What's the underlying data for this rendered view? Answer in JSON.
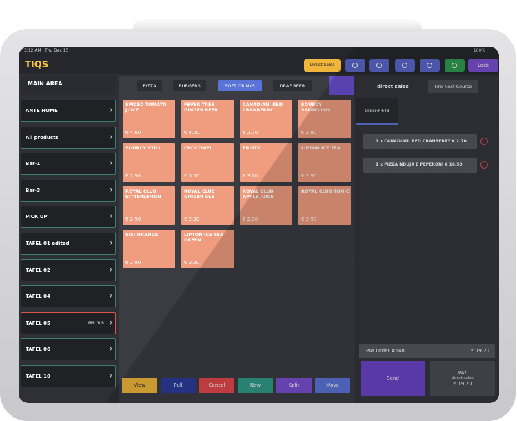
{
  "status": {
    "time": "3:12 AM",
    "date": "Thu Dec 15",
    "battery": "100%"
  },
  "header": {
    "logo": "TIQS",
    "direct_sales": "Direct Sales",
    "lock": "Lock"
  },
  "sidebar": {
    "title": "MAIN AREA",
    "items": [
      {
        "name": "ANTE HOME"
      },
      {
        "name": "All products"
      },
      {
        "name": "Bar-1"
      },
      {
        "name": "Bar-3"
      },
      {
        "name": "PICK UP"
      },
      {
        "name": "TAFEL 01 edited"
      },
      {
        "name": "TAFEL 02"
      },
      {
        "name": "TAFEL 04"
      },
      {
        "name": "TAFEL 05",
        "extra": "386 min"
      },
      {
        "name": "TAFEL 06"
      },
      {
        "name": "TAFEL 10"
      }
    ]
  },
  "tabs": [
    "PIZZA",
    "BURGERS",
    "SOFT DRINKS",
    "DRAF BEER"
  ],
  "products": [
    {
      "name": "SPICED TOMATO JUICE",
      "price": "€ 4.60"
    },
    {
      "name": "FEVER TREE GINGER BEER",
      "price": "€ 4.00"
    },
    {
      "name": "CANADIAN. RED CRANBERRY",
      "price": "€ 2.70"
    },
    {
      "name": "SOURCY SPARKLING",
      "price": "€ 2.90"
    },
    {
      "name": "SOURCY STILL",
      "price": "€ 2.90"
    },
    {
      "name": "CHOCOMEL",
      "price": "€ 3.00"
    },
    {
      "name": "FRISTY",
      "price": "€ 3.00"
    },
    {
      "name": "LIPTON ICE TEA",
      "price": "€ 2.90"
    },
    {
      "name": "ROYAL CLUB BITTERLEMON",
      "price": "€ 2.90"
    },
    {
      "name": "ROYAL CLUB GINGER ALE",
      "price": "€ 2.90"
    },
    {
      "name": "ROYAL CLUB APPLE JUICE",
      "price": "€ 2.90"
    },
    {
      "name": "ROYAL CLUB TONIC",
      "price": "€ 2.90"
    },
    {
      "name": "SISI ORANGE",
      "price": "€ 2.90"
    },
    {
      "name": "LIPTON ICE TEA GREEN",
      "price": "€ 2.90"
    }
  ],
  "actions": [
    "View",
    "Pull",
    "Cancel",
    "New",
    "Split",
    "Move"
  ],
  "order": {
    "title": "direct sales",
    "fire": "Fire Next Course",
    "tab": "Order# 648",
    "lines": [
      "1 x CANADIAN. RED CRANBERRY € 2.70",
      "1 x PIZZA NDUJA E PEPERONI € 16.50"
    ],
    "pay_label": "PAY Order #648",
    "total": "€ 19.20",
    "send": "Send",
    "pay": "PAY",
    "pay_sub": "direct sales",
    "pay_total": "€ 19.20"
  }
}
